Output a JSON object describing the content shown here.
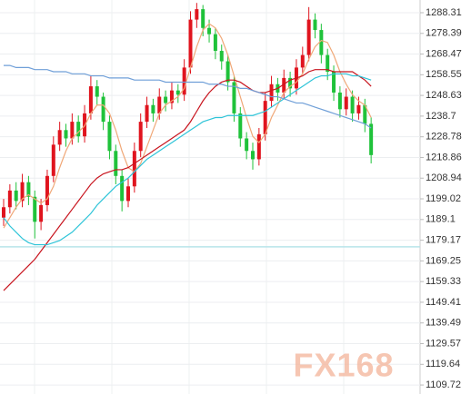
{
  "chart_data": {
    "type": "candlestick",
    "ylim": [
      1105.4,
      1294.4
    ],
    "yticks": [
      1109.72,
      1119.64,
      1129.57,
      1139.49,
      1149.41,
      1159.33,
      1169.25,
      1179.17,
      1189.1,
      1199.02,
      1208.94,
      1218.86,
      1228.78,
      1238.7,
      1248.63,
      1258.55,
      1268.47,
      1278.39,
      1288.31
    ],
    "grid": true,
    "up_color": "#e0141e",
    "down_color": "#1fc23a",
    "open": [
      1190,
      1195,
      1203,
      1198,
      1207,
      1200,
      1188,
      1196,
      1210,
      1225,
      1232,
      1228,
      1236,
      1229,
      1240,
      1253,
      1248,
      1236,
      1222,
      1210,
      1198,
      1205,
      1222,
      1236,
      1244,
      1240,
      1248,
      1245,
      1251,
      1249,
      1262,
      1285,
      1290,
      1281,
      1278,
      1270,
      1265,
      1255,
      1240,
      1228,
      1222,
      1218,
      1230,
      1246,
      1254,
      1250,
      1257,
      1252,
      1262,
      1268,
      1285,
      1280,
      1268,
      1260,
      1250,
      1242,
      1248,
      1240,
      1244,
      1235
    ],
    "high": [
      1199,
      1206,
      1207,
      1211,
      1210,
      1203,
      1199,
      1213,
      1229,
      1236,
      1235,
      1240,
      1239,
      1244,
      1258,
      1256,
      1250,
      1239,
      1225,
      1213,
      1209,
      1226,
      1240,
      1248,
      1247,
      1252,
      1251,
      1255,
      1254,
      1266,
      1289,
      1293,
      1292,
      1285,
      1281,
      1273,
      1268,
      1258,
      1243,
      1231,
      1226,
      1233,
      1250,
      1258,
      1257,
      1261,
      1260,
      1266,
      1272,
      1291,
      1288,
      1283,
      1271,
      1263,
      1253,
      1252,
      1251,
      1248,
      1247,
      1238
    ],
    "low": [
      1186,
      1192,
      1194,
      1195,
      1196,
      1180,
      1184,
      1193,
      1207,
      1222,
      1224,
      1225,
      1226,
      1226,
      1237,
      1244,
      1232,
      1218,
      1206,
      1193,
      1195,
      1202,
      1219,
      1233,
      1236,
      1237,
      1241,
      1242,
      1245,
      1246,
      1259,
      1281,
      1277,
      1274,
      1266,
      1261,
      1251,
      1236,
      1224,
      1218,
      1213,
      1215,
      1227,
      1243,
      1246,
      1247,
      1248,
      1249,
      1259,
      1265,
      1276,
      1264,
      1256,
      1246,
      1238,
      1239,
      1236,
      1237,
      1231,
      1216
    ],
    "close": [
      1195,
      1203,
      1198,
      1207,
      1200,
      1188,
      1196,
      1210,
      1225,
      1232,
      1228,
      1236,
      1229,
      1240,
      1253,
      1248,
      1236,
      1222,
      1210,
      1198,
      1205,
      1222,
      1236,
      1244,
      1240,
      1248,
      1245,
      1251,
      1249,
      1262,
      1285,
      1290,
      1281,
      1278,
      1270,
      1265,
      1255,
      1240,
      1228,
      1222,
      1218,
      1230,
      1246,
      1254,
      1250,
      1257,
      1252,
      1262,
      1268,
      1285,
      1280,
      1268,
      1260,
      1250,
      1242,
      1248,
      1240,
      1244,
      1235,
      1220
    ],
    "overlays": [
      {
        "color": "#f0a878",
        "values": [
          1185,
          1190,
          1195,
          1199,
          1201,
          1199,
          1197,
          1199,
          1205,
          1214,
          1222,
          1228,
          1231,
          1234,
          1240,
          1244,
          1244,
          1240,
          1232,
          1222,
          1214,
          1212,
          1216,
          1224,
          1232,
          1240,
          1244,
          1246,
          1248,
          1252,
          1262,
          1272,
          1280,
          1283,
          1281,
          1276,
          1268,
          1258,
          1248,
          1238,
          1229,
          1226,
          1230,
          1238,
          1244,
          1250,
          1253,
          1255,
          1259,
          1266,
          1272,
          1275,
          1274,
          1268,
          1260,
          1254,
          1249,
          1246,
          1244,
          1238
        ]
      },
      {
        "color": "#c8141e",
        "values": [
          1155,
          1158,
          1161,
          1164,
          1167,
          1170,
          1174,
          1178,
          1182,
          1186,
          1190,
          1194,
          1198,
          1202,
          1206,
          1209,
          1211,
          1212,
          1213,
          1213,
          1214,
          1216,
          1218,
          1220,
          1222,
          1224,
          1226,
          1228,
          1230,
          1232,
          1236,
          1241,
          1246,
          1250,
          1253,
          1255,
          1256,
          1256,
          1255,
          1253,
          1251,
          1250,
          1250,
          1251,
          1252,
          1254,
          1256,
          1257,
          1258,
          1260,
          1261,
          1261,
          1261,
          1260,
          1260,
          1260,
          1260,
          1258,
          1256,
          1253
        ]
      },
      {
        "color": "#2ec4d8",
        "values": [
          1190,
          1186,
          1183,
          1180,
          1178,
          1177,
          1177,
          1177,
          1178,
          1179,
          1181,
          1183,
          1186,
          1189,
          1192,
          1196,
          1199,
          1202,
          1205,
          1207,
          1209,
          1212,
          1215,
          1218,
          1220,
          1222,
          1224,
          1226,
          1228,
          1230,
          1232,
          1234,
          1236,
          1237,
          1238,
          1238,
          1239,
          1239,
          1239,
          1239,
          1239,
          1240,
          1241,
          1243,
          1245,
          1247,
          1249,
          1251,
          1253,
          1255,
          1257,
          1258,
          1258,
          1259,
          1259,
          1259,
          1258,
          1258,
          1257,
          1256
        ]
      },
      {
        "color": "#6f9fd8",
        "values": [
          1263,
          1263,
          1262,
          1262,
          1262,
          1261,
          1261,
          1261,
          1260,
          1260,
          1260,
          1259,
          1259,
          1259,
          1258,
          1258,
          1258,
          1257,
          1257,
          1257,
          1257,
          1256,
          1256,
          1256,
          1256,
          1256,
          1255,
          1255,
          1255,
          1255,
          1255,
          1255,
          1255,
          1254,
          1254,
          1254,
          1253,
          1253,
          1252,
          1252,
          1251,
          1250,
          1249,
          1248,
          1248,
          1247,
          1246,
          1245,
          1245,
          1244,
          1243,
          1242,
          1241,
          1240,
          1239,
          1238,
          1237,
          1236,
          1235,
          1233
        ]
      }
    ],
    "reference_line": 1176,
    "watermark": "FX168"
  }
}
